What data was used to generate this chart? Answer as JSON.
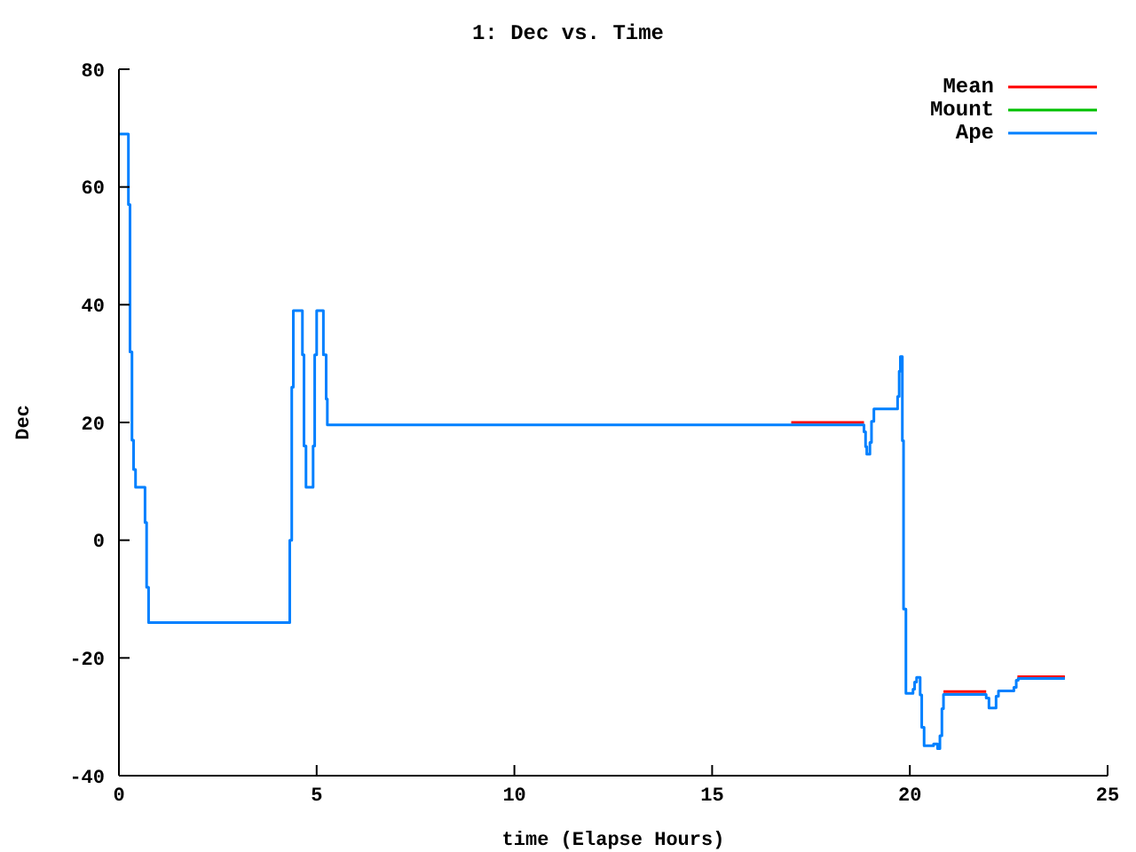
{
  "chart_data": {
    "type": "step",
    "title": "1: Dec vs. Time",
    "xlabel": "time (Elapse Hours)",
    "ylabel": "Dec",
    "xlim": [
      0,
      25
    ],
    "xticks": [
      0,
      5,
      10,
      15,
      20,
      25
    ],
    "ylim": [
      -40,
      80
    ],
    "yticks": [
      -40,
      -20,
      0,
      20,
      40,
      60,
      80
    ],
    "legend": "top right",
    "marker": "none",
    "line_style": "solid",
    "series": [
      {
        "name": "Mean",
        "color": "#ff0000",
        "x": [
          17.0,
          18.84,
          18.85,
          20.85,
          21.93,
          21.94,
          22.72,
          23.92
        ],
        "values": [
          20,
          20,
          null,
          -25.7,
          -25.7,
          null,
          -23.2,
          -23.2
        ]
      },
      {
        "name": "Mount",
        "color": "#00c000"
      },
      {
        "name": "Ape",
        "color": "#0080ff",
        "x": [
          0,
          0.24,
          0.28,
          0.33,
          0.37,
          0.42,
          0.66,
          0.7,
          0.75,
          4.32,
          4.37,
          4.41,
          4.64,
          4.68,
          4.73,
          4.91,
          4.95,
          5.0,
          5.17,
          5.24,
          5.27,
          18.84,
          18.88,
          18.91,
          18.99,
          19.03,
          19.09,
          19.69,
          19.73,
          19.76,
          19.81,
          19.84,
          19.9,
          20.08,
          20.12,
          20.17,
          20.26,
          20.3,
          20.36,
          20.6,
          20.7,
          20.76,
          20.81,
          20.85,
          21.93,
          22.0,
          22.18,
          22.24,
          22.63,
          22.69,
          22.74,
          23.92
        ],
        "values": [
          69,
          57,
          32,
          17,
          12,
          9,
          3,
          -8,
          -14,
          0,
          26,
          39,
          31.5,
          16,
          9,
          16,
          31.5,
          39,
          31.5,
          24,
          19.6,
          18.4,
          15.9,
          14.6,
          16.6,
          20.2,
          22.3,
          24.4,
          28.7,
          31.2,
          16.9,
          -11.7,
          -26,
          -25.3,
          -24.1,
          -23.3,
          -26.3,
          -31.8,
          -34.9,
          -34.6,
          -35.4,
          -33.2,
          -28.6,
          -26.2,
          -26.8,
          -28.5,
          -26.5,
          -25.6,
          -25,
          -23.8,
          -23.5,
          -23.5
        ]
      }
    ]
  }
}
